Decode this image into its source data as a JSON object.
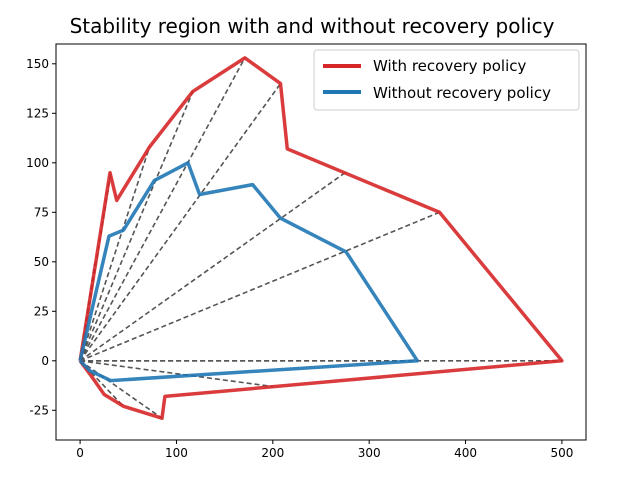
{
  "chart_data": {
    "type": "line",
    "title": "Stability region with and without recovery policy",
    "xlabel": "",
    "ylabel": "",
    "xlim": [
      -25,
      525
    ],
    "ylim": [
      -40,
      160
    ],
    "xticks": [
      0,
      100,
      200,
      300,
      400,
      500
    ],
    "yticks": [
      -25,
      0,
      25,
      50,
      75,
      100,
      125,
      150
    ],
    "grid": false,
    "legend_position": "top-right",
    "series": [
      {
        "name": "With recovery policy",
        "color": "#d62728",
        "points": [
          [
            0,
            0
          ],
          [
            12,
            -8
          ],
          [
            25,
            -17
          ],
          [
            45,
            -23
          ],
          [
            85,
            -29
          ],
          [
            88,
            -18
          ],
          [
            500,
            0
          ],
          [
            373,
            75
          ],
          [
            215,
            107
          ],
          [
            208,
            140
          ],
          [
            171,
            153
          ],
          [
            117,
            136
          ],
          [
            72,
            108
          ],
          [
            38,
            81
          ],
          [
            31,
            95
          ],
          [
            0,
            0
          ]
        ]
      },
      {
        "name": "Without recovery policy",
        "color": "#1f77b4",
        "points": [
          [
            0,
            0
          ],
          [
            10,
            -5
          ],
          [
            32,
            -10
          ],
          [
            350,
            0
          ],
          [
            276,
            55
          ],
          [
            208,
            72
          ],
          [
            179,
            89
          ],
          [
            124,
            84
          ],
          [
            112,
            100
          ],
          [
            77,
            91
          ],
          [
            45,
            66
          ],
          [
            30,
            63
          ],
          [
            0,
            0
          ]
        ]
      }
    ],
    "rays": {
      "color": "#555555",
      "style": "dashed",
      "origin": [
        0,
        0
      ],
      "endpoints": [
        [
          500,
          0
        ],
        [
          373,
          75
        ],
        [
          275,
          95
        ],
        [
          208,
          140
        ],
        [
          171,
          153
        ],
        [
          117,
          136
        ],
        [
          72,
          108
        ],
        [
          32,
          95
        ],
        [
          15,
          49
        ],
        [
          350,
          0
        ],
        [
          200,
          -13
        ],
        [
          85,
          -29
        ],
        [
          45,
          -23
        ]
      ]
    }
  }
}
